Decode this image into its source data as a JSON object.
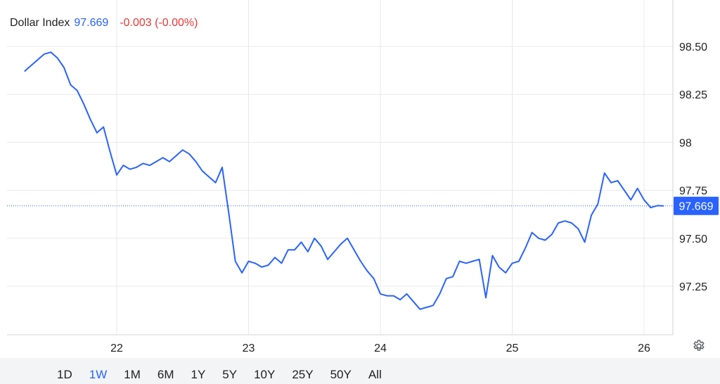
{
  "header": {
    "name": "Dollar Index",
    "price": "97.669",
    "change": "-0.003 (-0.00%)"
  },
  "colors": {
    "line": "#2962ff",
    "down": "#e53935",
    "grid": "#e8e8e8"
  },
  "ranges": [
    "1D",
    "1W",
    "1M",
    "6M",
    "1Y",
    "5Y",
    "10Y",
    "25Y",
    "50Y",
    "All"
  ],
  "active_range": "1W",
  "settings_icon": "gear-icon",
  "chart_data": {
    "type": "line",
    "title": "Dollar Index",
    "y_ticks": [
      "98.50",
      "98.25",
      "98",
      "97.75",
      "97.50",
      "97.25"
    ],
    "y_tick_values": [
      98.5,
      98.25,
      98.0,
      97.75,
      97.5,
      97.25
    ],
    "ylim": [
      97.05,
      98.55
    ],
    "x_ticks": [
      "22",
      "23",
      "24",
      "25",
      "26"
    ],
    "x_tick_values": [
      22,
      23,
      24,
      25,
      26
    ],
    "xlim": [
      21.3,
      26.22
    ],
    "current_value": 97.669,
    "current_label": "97.669",
    "grid": true,
    "series": [
      {
        "x": [
          21.3,
          21.35,
          21.4,
          21.45,
          21.5,
          21.55,
          21.6,
          21.65,
          21.7,
          21.75,
          21.8,
          21.85,
          21.9,
          21.95,
          22.0,
          22.05,
          22.1,
          22.15,
          22.2,
          22.25,
          22.3,
          22.35,
          22.4,
          22.45,
          22.5,
          22.55,
          22.6,
          22.65,
          22.7,
          22.75,
          22.8,
          22.85,
          22.9,
          22.95,
          23.0,
          23.05,
          23.1,
          23.15,
          23.2,
          23.25,
          23.3,
          23.35,
          23.4,
          23.45,
          23.5,
          23.55,
          23.6,
          23.65,
          23.7,
          23.75,
          23.8,
          23.85,
          23.9,
          23.95,
          24.0,
          24.05,
          24.1,
          24.15,
          24.2,
          24.25,
          24.3,
          24.35,
          24.4,
          24.45,
          24.5,
          24.55,
          24.6,
          24.65,
          24.7,
          24.75,
          24.8,
          24.85,
          24.9,
          24.95,
          25.0,
          25.05,
          25.1,
          25.15,
          25.2,
          25.25,
          25.3,
          25.35,
          25.4,
          25.45,
          25.5,
          25.55,
          25.6,
          25.65,
          25.7,
          25.75,
          25.8,
          25.85,
          25.9,
          25.95,
          26.0,
          26.05,
          26.1,
          26.15
        ],
        "y": [
          98.37,
          98.4,
          98.43,
          98.46,
          98.47,
          98.44,
          98.39,
          98.3,
          98.27,
          98.2,
          98.12,
          98.05,
          98.08,
          97.95,
          97.83,
          97.88,
          97.86,
          97.87,
          97.89,
          97.88,
          97.9,
          97.92,
          97.9,
          97.93,
          97.96,
          97.94,
          97.9,
          97.85,
          97.82,
          97.79,
          97.87,
          97.63,
          97.38,
          97.32,
          97.38,
          97.37,
          97.35,
          97.36,
          97.4,
          97.37,
          97.44,
          97.44,
          97.48,
          97.43,
          97.5,
          97.46,
          97.39,
          97.43,
          97.47,
          97.5,
          97.44,
          97.38,
          97.33,
          97.29,
          97.21,
          97.2,
          97.2,
          97.18,
          97.21,
          97.17,
          97.13,
          97.14,
          97.15,
          97.21,
          97.29,
          97.3,
          97.38,
          97.37,
          97.38,
          97.39,
          97.19,
          97.41,
          97.35,
          97.32,
          97.37,
          97.38,
          97.45,
          97.53,
          97.5,
          97.49,
          97.52,
          97.58,
          97.59,
          97.58,
          97.55,
          97.48,
          97.62,
          97.68,
          97.84,
          97.79,
          97.8,
          97.75,
          97.7,
          97.76,
          97.7,
          97.66,
          97.67,
          97.669
        ]
      }
    ]
  }
}
